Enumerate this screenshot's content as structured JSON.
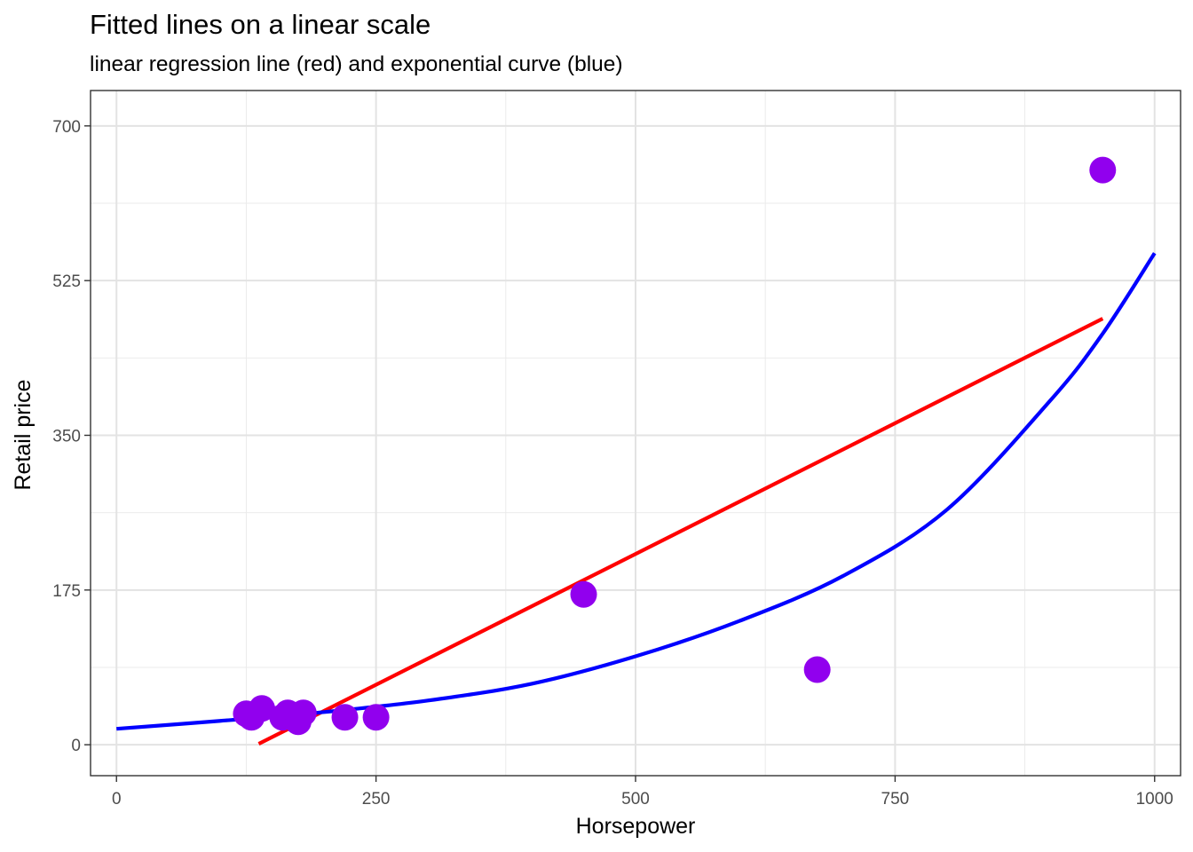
{
  "chart_data": {
    "type": "scatter",
    "title": "Fitted lines on a linear scale",
    "subtitle": "linear regression line (red) and exponential curve (blue)",
    "xlabel": "Horsepower",
    "ylabel": "Retail price",
    "xlim": [
      -25,
      1025
    ],
    "ylim": [
      -35,
      740
    ],
    "x_ticks": [
      0,
      250,
      500,
      750,
      1000
    ],
    "x_tick_labels": [
      "0",
      "250",
      "500",
      "750",
      "1000"
    ],
    "y_ticks": [
      0,
      175,
      350,
      525,
      700
    ],
    "y_tick_labels": [
      "0",
      "175",
      "350",
      "525",
      "700"
    ],
    "x_minor": [
      125,
      375,
      625,
      875
    ],
    "y_minor": [
      87.5,
      262.5,
      437.5,
      612.5
    ],
    "grid": true,
    "point_color": "#9100ee",
    "points": [
      {
        "x": 125,
        "y": 35
      },
      {
        "x": 130,
        "y": 31
      },
      {
        "x": 140,
        "y": 41
      },
      {
        "x": 160,
        "y": 31
      },
      {
        "x": 165,
        "y": 36
      },
      {
        "x": 175,
        "y": 26
      },
      {
        "x": 180,
        "y": 36
      },
      {
        "x": 220,
        "y": 31
      },
      {
        "x": 250,
        "y": 31
      },
      {
        "x": 450,
        "y": 170
      },
      {
        "x": 675,
        "y": 85
      },
      {
        "x": 950,
        "y": 650
      }
    ],
    "series": [
      {
        "type": "line",
        "color": "#ff0000",
        "x": [
          137,
          950
        ],
        "y": [
          1,
          482
        ]
      },
      {
        "type": "curve",
        "color": "#0000ff",
        "x": [
          0,
          100,
          200,
          300,
          400,
          500,
          600,
          700,
          800,
          900,
          950,
          1000
        ],
        "y": [
          18,
          27,
          37,
          50,
          69,
          100,
          140,
          191,
          266,
          390,
          465,
          556
        ]
      }
    ]
  }
}
